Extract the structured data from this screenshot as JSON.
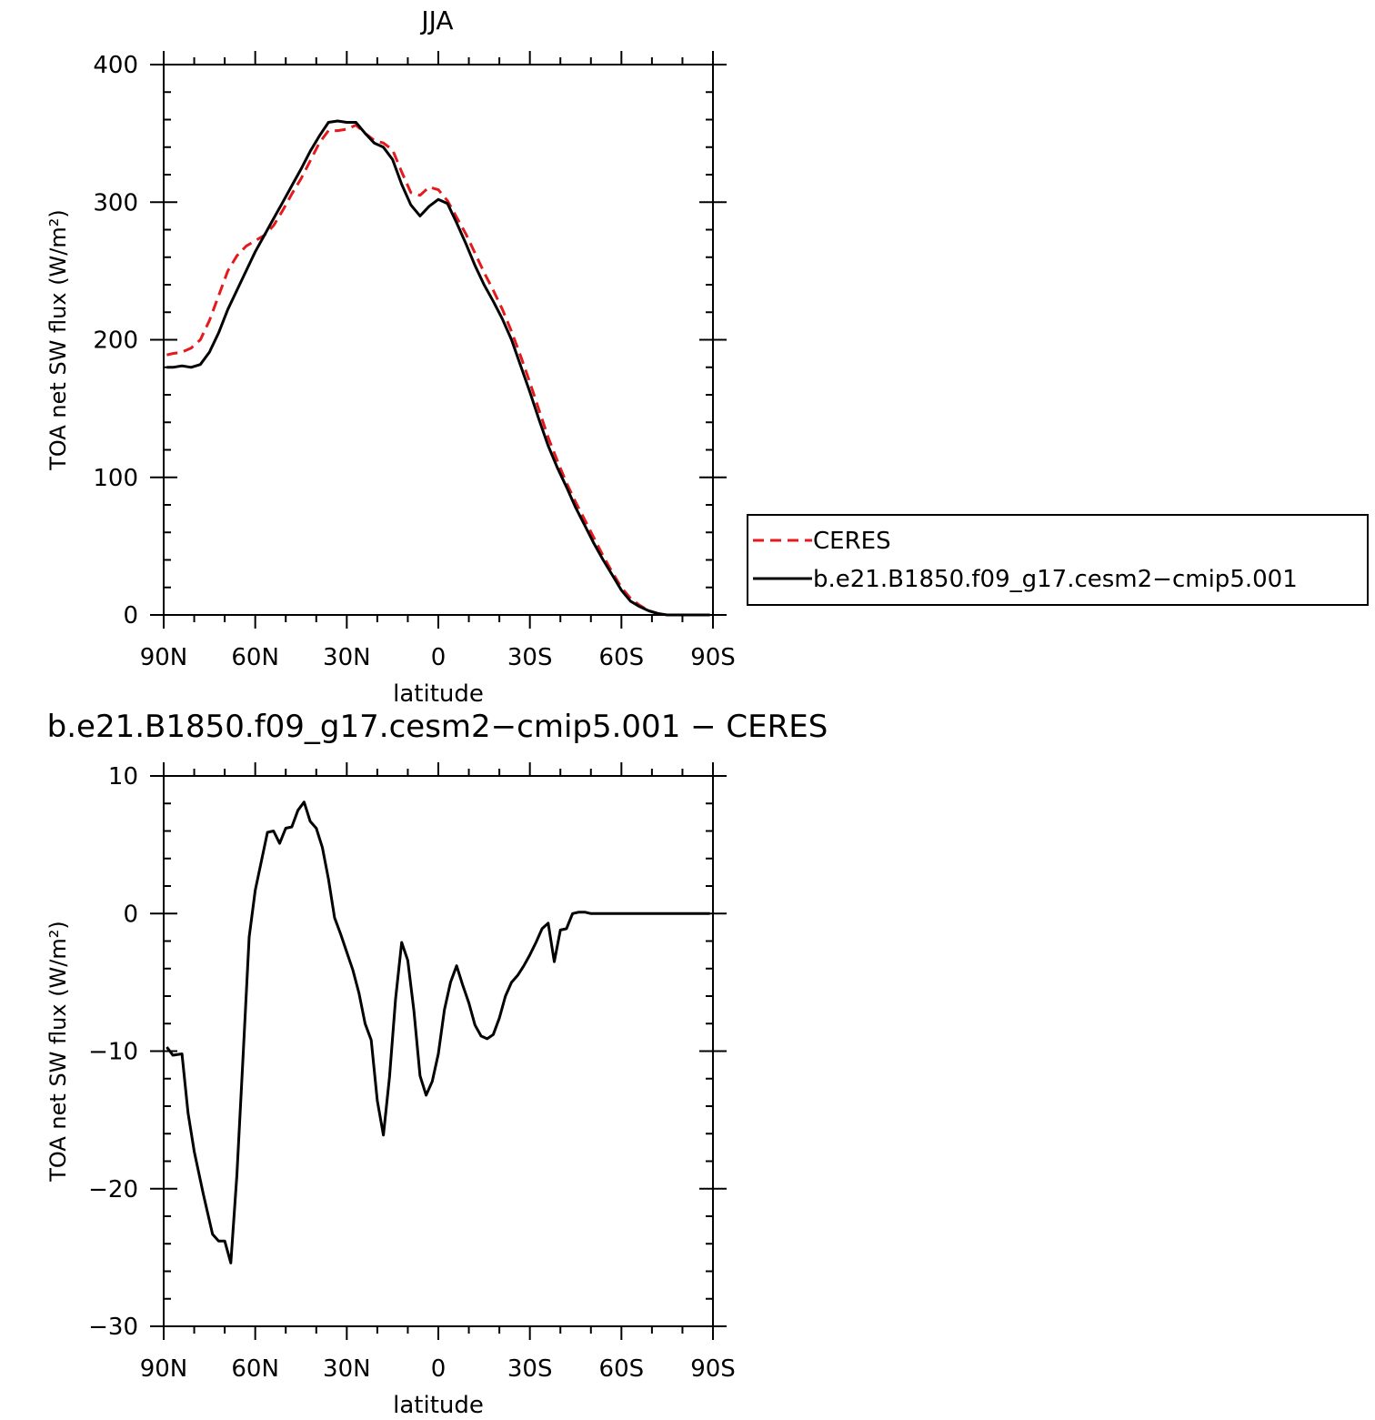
{
  "figure": {
    "top_title": "JJA",
    "bottom_title": "b.e21.B1850.f09_g17.cesm2−cmip5.001  −  CERES"
  },
  "chart_data": [
    {
      "type": "line",
      "title": "JJA",
      "xlabel": "latitude",
      "ylabel": "TOA net SW flux (W/m²)",
      "xlim": [
        -90,
        90
      ],
      "ylim": [
        0,
        400
      ],
      "x_ticks": [
        -90,
        -60,
        -30,
        0,
        30,
        60,
        90
      ],
      "x_tick_labels": [
        "90N",
        "60N",
        "30N",
        "0",
        "30S",
        "60S",
        "90S"
      ],
      "y_ticks": [
        0,
        100,
        200,
        300,
        400
      ],
      "y_tick_labels": [
        "0",
        "100",
        "200",
        "300",
        "400"
      ],
      "legend_position": "right",
      "x": [
        -89,
        -87,
        -84,
        -81,
        -78,
        -75,
        -72,
        -69,
        -66,
        -63,
        -60,
        -57,
        -54,
        -51,
        -48,
        -45,
        -42,
        -39,
        -36,
        -33,
        -30,
        -27,
        -24,
        -21,
        -18,
        -15,
        -12,
        -9,
        -6,
        -3,
        0,
        3,
        6,
        9,
        12,
        15,
        18,
        21,
        24,
        27,
        30,
        33,
        36,
        39,
        42,
        45,
        48,
        51,
        54,
        57,
        60,
        63,
        66,
        69,
        72,
        75,
        78,
        81,
        84,
        87,
        89
      ],
      "series": [
        {
          "name": "CERES",
          "color": "#e41a1c",
          "dash": "dashed",
          "values": [
            189,
            190,
            191,
            194,
            200,
            214,
            232,
            250,
            261,
            268,
            272,
            276,
            283,
            294,
            306,
            317,
            330,
            343,
            352,
            352,
            353,
            356,
            350,
            345,
            343,
            338,
            322,
            307,
            305,
            311,
            309,
            301,
            289,
            277,
            263,
            249,
            236,
            222,
            206,
            188,
            169,
            149,
            129,
            112,
            96,
            82,
            69,
            56,
            43,
            31,
            20,
            12,
            7,
            3,
            1,
            0,
            0,
            0,
            0,
            0,
            0
          ]
        },
        {
          "name": "b.e21.B1850.f09_g17.cesm2−cmip5.001",
          "color": "#000000",
          "dash": "solid",
          "values": [
            180,
            180,
            181,
            180,
            182,
            191,
            205,
            222,
            236,
            250,
            264,
            276,
            288,
            300,
            312,
            324,
            337,
            348,
            358,
            359,
            358,
            358,
            350,
            343,
            340,
            331,
            313,
            298,
            290,
            297,
            302,
            299,
            285,
            270,
            254,
            240,
            228,
            215,
            200,
            181,
            162,
            142,
            123,
            107,
            93,
            78,
            65,
            52,
            40,
            29,
            18,
            10,
            6,
            3,
            1,
            0,
            0,
            0,
            0,
            0,
            0
          ]
        }
      ]
    },
    {
      "type": "line",
      "title": "b.e21.B1850.f09_g17.cesm2−cmip5.001  −  CERES",
      "xlabel": "latitude",
      "ylabel": "TOA net SW flux (W/m²)",
      "xlim": [
        -90,
        90
      ],
      "ylim": [
        -30,
        10
      ],
      "x_ticks": [
        -90,
        -60,
        -30,
        0,
        30,
        60,
        90
      ],
      "x_tick_labels": [
        "90N",
        "60N",
        "30N",
        "0",
        "30S",
        "60S",
        "90S"
      ],
      "y_ticks": [
        -30,
        -20,
        -10,
        0,
        10
      ],
      "y_tick_labels": [
        "−30",
        "−20",
        "−10",
        "0",
        "10"
      ],
      "x": [
        -89,
        -87,
        -84,
        -82,
        -80,
        -77,
        -74,
        -72,
        -70,
        -68,
        -66,
        -64,
        -62,
        -60,
        -58,
        -56,
        -54,
        -52,
        -50,
        -48,
        -46,
        -44,
        -42,
        -40,
        -38,
        -36,
        -34,
        -32,
        -30,
        -28,
        -26,
        -24,
        -22,
        -20,
        -18,
        -16,
        -14,
        -12,
        -10,
        -8,
        -6,
        -4,
        -2,
        0,
        2,
        4,
        6,
        8,
        10,
        12,
        14,
        16,
        18,
        20,
        22,
        24,
        26,
        28,
        30,
        32,
        34,
        36,
        38,
        40,
        42,
        44,
        46,
        48,
        50,
        52,
        54,
        56,
        58,
        60,
        62,
        64,
        66,
        68,
        70,
        72,
        74,
        76,
        78,
        80,
        82,
        84,
        86,
        88,
        89
      ],
      "series": [
        {
          "name": "",
          "color": "#000000",
          "dash": "solid",
          "values": [
            -9.7,
            -10.3,
            -10.2,
            -14.5,
            -17.3,
            -20.4,
            -23.3,
            -23.8,
            -23.8,
            -25.4,
            -19.0,
            -10.5,
            -1.7,
            1.7,
            3.8,
            5.9,
            6.0,
            5.1,
            6.2,
            6.3,
            7.5,
            8.1,
            6.7,
            6.2,
            4.8,
            2.5,
            -0.3,
            -1.5,
            -2.8,
            -4.1,
            -5.8,
            -8.0,
            -9.2,
            -13.6,
            -16.1,
            -11.9,
            -6.2,
            -2.1,
            -3.4,
            -7.1,
            -11.8,
            -13.2,
            -12.2,
            -10.2,
            -7.0,
            -5.0,
            -3.8,
            -5.2,
            -6.5,
            -8.1,
            -8.9,
            -9.1,
            -8.8,
            -7.6,
            -6.0,
            -5.0,
            -4.5,
            -3.8,
            -3.0,
            -2.1,
            -1.1,
            -0.7,
            -3.5,
            -1.2,
            -1.1,
            0.0,
            0.1,
            0.1,
            0.0,
            0.0,
            0.0,
            0.0,
            0.0,
            0.0,
            0.0,
            0.0,
            0.0,
            0.0,
            0.0,
            0.0,
            0.0,
            0.0,
            0.0,
            0.0,
            0.0,
            0.0,
            0.0,
            0.0,
            0.0
          ]
        }
      ]
    }
  ]
}
